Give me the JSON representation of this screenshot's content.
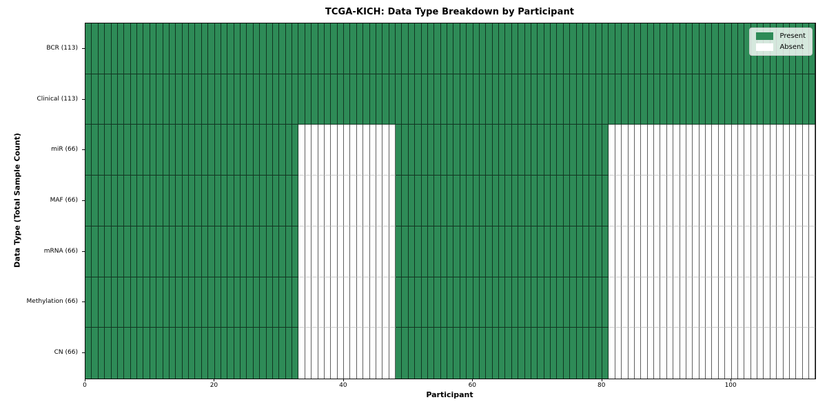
{
  "chart_data": {
    "type": "heatmap",
    "title": "TCGA-KICH: Data Type Breakdown by Participant",
    "xlabel": "Participant",
    "ylabel": "Data Type (Total Sample Count)",
    "x_range": [
      0,
      113
    ],
    "n_participants": 113,
    "x_ticks": [
      0,
      20,
      40,
      60,
      80,
      100
    ],
    "grid": "cell-edges",
    "rows": [
      {
        "label": "BCR (113)",
        "total": 113,
        "present_ranges": [
          [
            0,
            113
          ]
        ]
      },
      {
        "label": "Clinical (113)",
        "total": 113,
        "present_ranges": [
          [
            0,
            113
          ]
        ]
      },
      {
        "label": "miR (66)",
        "total": 66,
        "present_ranges": [
          [
            0,
            33
          ],
          [
            48,
            81
          ]
        ]
      },
      {
        "label": "MAF (66)",
        "total": 66,
        "present_ranges": [
          [
            0,
            33
          ],
          [
            48,
            81
          ]
        ]
      },
      {
        "label": "mRNA (66)",
        "total": 66,
        "present_ranges": [
          [
            0,
            33
          ],
          [
            48,
            81
          ]
        ]
      },
      {
        "label": "Methylation (66)",
        "total": 66,
        "present_ranges": [
          [
            0,
            33
          ],
          [
            48,
            81
          ]
        ]
      },
      {
        "label": "CN (66)",
        "total": 66,
        "present_ranges": [
          [
            0,
            33
          ],
          [
            48,
            81
          ]
        ]
      }
    ],
    "legend": {
      "position": "upper right",
      "items": [
        {
          "label": "Present",
          "color": "#2e8b57"
        },
        {
          "label": "Absent",
          "color": "#ffffff"
        }
      ]
    },
    "colors": {
      "present": "#2e8b57",
      "absent": "#ffffff",
      "cell_edge_on_present": "#123823",
      "cell_edge_on_absent": "#5f5f5f",
      "row_separator_on_absent": "#cccccc",
      "plot_border": "#0a0a0a",
      "legend_border": "#cccccc"
    }
  }
}
